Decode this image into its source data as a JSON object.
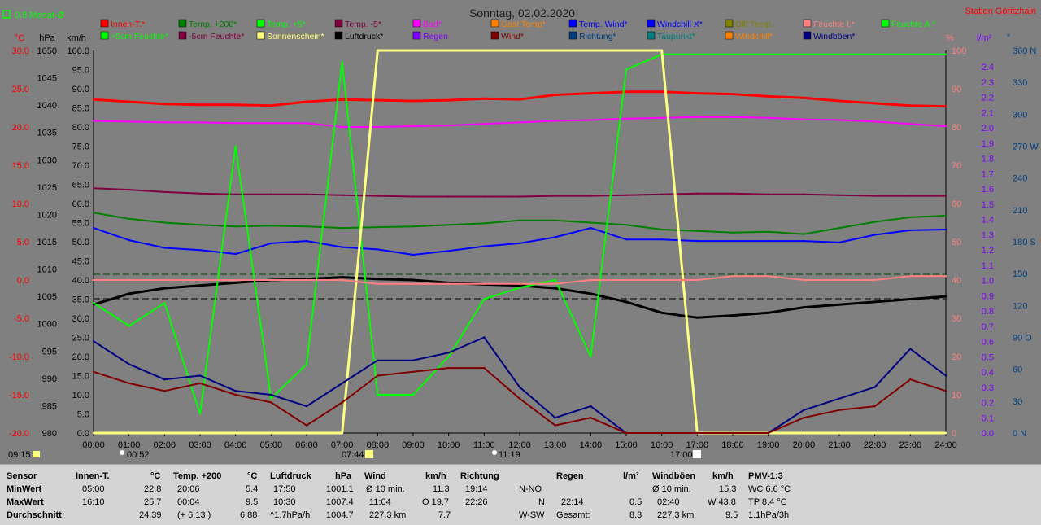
{
  "header": {
    "title": "Sonntag, 02.02.2020",
    "station": "Station Göritzhain",
    "monthly_avg_label": "0.8 Monat-Ø"
  },
  "units": {
    "left": [
      "°C",
      "hPa",
      "km/h"
    ],
    "right": [
      "%",
      "l/m²",
      "°"
    ]
  },
  "axes": {
    "temp_ticks": [
      "30.0",
      "25.0",
      "20.0",
      "15.0",
      "10.0",
      "5.0",
      "0.0",
      "-5.0",
      "-10.0",
      "-15.0",
      "-20.0"
    ],
    "pressure_ticks": [
      "1050",
      "1045",
      "1040",
      "1035",
      "1030",
      "1025",
      "1020",
      "1015",
      "1010",
      "1005",
      "1000",
      "995",
      "990",
      "985",
      "980"
    ],
    "wind_ticks": [
      "100.0",
      "95.0",
      "90.0",
      "85.0",
      "80.0",
      "75.0",
      "70.0",
      "65.0",
      "60.0",
      "55.0",
      "50.0",
      "45.0",
      "40.0",
      "35.0",
      "30.0",
      "25.0",
      "20.0",
      "15.0",
      "10.0",
      "5.0",
      "0.0"
    ],
    "humidity_ticks": [
      "100",
      "90",
      "80",
      "70",
      "60",
      "50",
      "40",
      "30",
      "20",
      "10",
      "0"
    ],
    "rain_ticks": [
      "2.4",
      "2.3",
      "2.2",
      "2.1",
      "2.0",
      "1.9",
      "1.8",
      "1.7",
      "1.6",
      "1.5",
      "1.4",
      "1.3",
      "1.2",
      "1.1",
      "1.0",
      "0.9",
      "0.8",
      "0.7",
      "0.6",
      "0.5",
      "0.4",
      "0.3",
      "0.2",
      "0.1",
      "0.0"
    ],
    "direction_ticks": [
      "360 N",
      "330",
      "300",
      "270 W",
      "240",
      "210",
      "180 S",
      "150",
      "120",
      "90 O",
      "60",
      "30",
      "0 N"
    ],
    "time_ticks": [
      "00:00",
      "01:00",
      "02:00",
      "03:00",
      "04:00",
      "05:00",
      "06:00",
      "07:00",
      "08:00",
      "09:00",
      "10:00",
      "11:00",
      "12:00",
      "13:00",
      "14:00",
      "15:00",
      "16:00",
      "17:00",
      "18:00",
      "19:00",
      "20:00",
      "21:00",
      "22:00",
      "23:00",
      "24:00"
    ]
  },
  "time_markers": {
    "sunrise_label": "07:44",
    "sunset_label": "17:00",
    "moonrise_label": "00:52",
    "moonset_label": "11:19",
    "daylength_label": "09:15"
  },
  "legend": [
    {
      "label": "Innen-T.*",
      "color": "#ff0000"
    },
    {
      "label": "Temp. +200*",
      "color": "#008000"
    },
    {
      "label": "Temp. +5*",
      "color": "#00ff00"
    },
    {
      "label": "Temp. -5*",
      "color": "#800040"
    },
    {
      "label": "Bad*",
      "color": "#ff00ff"
    },
    {
      "label": "Gast Temp*",
      "color": "#ff8000"
    },
    {
      "label": "Temp. Wind*",
      "color": "#0000ff"
    },
    {
      "label": "Windchill X*",
      "color": "#0000ff"
    },
    {
      "label": "Diff Temp.",
      "color": "#808000"
    },
    {
      "label": "Feuchte I.*",
      "color": "#ff8080"
    },
    {
      "label": "Feuchte A.*",
      "color": "#00ff00"
    },
    {
      "label": "+5cm Feuchte*",
      "color": "#00ff00"
    },
    {
      "label": "-5cm Feuchte*",
      "color": "#800040"
    },
    {
      "label": "Sonnenschein*",
      "color": "#ffff80"
    },
    {
      "label": "Luftdruck*",
      "color": "#000000"
    },
    {
      "label": "Regen",
      "color": "#8000ff"
    },
    {
      "label": "Wind*",
      "color": "#800000"
    },
    {
      "label": "Richtung*",
      "color": "#004080"
    },
    {
      "label": "Taupunkt*",
      "color": "#008080"
    },
    {
      "label": "Windchill*",
      "color": "#ff8000"
    },
    {
      "label": "Windböen*",
      "color": "#000080"
    }
  ],
  "chart_data": {
    "type": "line",
    "title": "Sonntag, 02.02.2020",
    "x_range": [
      "00:00",
      "24:00"
    ],
    "temp_range": [
      -20,
      30
    ],
    "pressure_range": [
      980,
      1050
    ],
    "wind_range": [
      0,
      100
    ],
    "humidity_range": [
      0,
      100
    ],
    "grid": false,
    "legend_placement": "top",
    "x": [
      0,
      1,
      2,
      3,
      4,
      5,
      6,
      7,
      8,
      9,
      10,
      11,
      12,
      13,
      14,
      15,
      16,
      17,
      18,
      19,
      20,
      21,
      22,
      23,
      24
    ],
    "series": [
      {
        "name": "Innen-T.*",
        "axis": "temp",
        "color": "#ff0000",
        "values": [
          23.6,
          23.3,
          23.0,
          22.9,
          22.9,
          22.8,
          23.3,
          23.6,
          23.5,
          23.4,
          23.5,
          23.7,
          23.6,
          24.2,
          24.4,
          24.6,
          24.6,
          24.4,
          24.3,
          24.0,
          23.8,
          23.4,
          23.1,
          22.8,
          22.7
        ]
      },
      {
        "name": "Bad*",
        "axis": "temp",
        "color": "#ff00ff",
        "values": [
          20.8,
          20.7,
          20.6,
          20.6,
          20.5,
          20.5,
          20.5,
          20.0,
          20.0,
          20.1,
          20.2,
          20.4,
          20.6,
          20.8,
          20.9,
          21.1,
          21.2,
          21.3,
          21.3,
          21.2,
          21.0,
          20.9,
          20.7,
          20.4,
          20.1
        ]
      },
      {
        "name": "Temp. -5*",
        "axis": "temp",
        "color": "#800040",
        "values": [
          12.0,
          11.8,
          11.5,
          11.3,
          11.2,
          11.2,
          11.2,
          11.1,
          11.0,
          10.9,
          10.9,
          10.9,
          10.9,
          11.0,
          11.0,
          11.1,
          11.2,
          11.3,
          11.3,
          11.2,
          11.2,
          11.1,
          11.0,
          11.0,
          11.0
        ]
      },
      {
        "name": "Temp. +200*",
        "axis": "temp",
        "color": "#008000",
        "values": [
          8.8,
          8.0,
          7.5,
          7.2,
          7.0,
          7.1,
          7.0,
          6.8,
          6.9,
          7.0,
          7.2,
          7.4,
          7.8,
          7.8,
          7.5,
          7.2,
          6.6,
          6.4,
          6.2,
          6.3,
          6.0,
          6.8,
          7.6,
          8.2,
          8.4
        ]
      },
      {
        "name": "Temp. Wind*",
        "axis": "temp",
        "color": "#0000ff",
        "values": [
          6.8,
          5.2,
          4.2,
          3.9,
          3.4,
          4.8,
          5.1,
          4.3,
          4.0,
          3.3,
          3.8,
          4.4,
          4.8,
          5.6,
          6.8,
          5.3,
          5.3,
          5.1,
          5.1,
          5.1,
          5.1,
          4.9,
          5.9,
          6.5,
          6.6
        ]
      },
      {
        "name": "Luftdruck*",
        "axis": "pressure",
        "color": "#000000",
        "values": [
          1003.5,
          1005.5,
          1006.5,
          1007.0,
          1007.5,
          1008.0,
          1008.2,
          1008.5,
          1008.2,
          1008.0,
          1007.5,
          1007.2,
          1007.0,
          1006.5,
          1005.5,
          1004.0,
          1002.0,
          1001.1,
          1001.5,
          1002.0,
          1003.0,
          1003.5,
          1004.0,
          1004.5,
          1005.0
        ]
      },
      {
        "name": "Feuchte A.*",
        "axis": "humidity",
        "color": "#00ff00",
        "values": [
          34,
          28,
          34,
          5,
          75,
          9,
          18,
          97,
          10,
          10,
          20,
          35,
          38,
          40,
          20,
          95,
          99,
          99,
          99,
          99,
          99,
          99,
          99,
          99,
          99
        ]
      },
      {
        "name": "Sonnenschein*",
        "axis": "humidity",
        "color": "#ffff80",
        "values": [
          0,
          0,
          0,
          0,
          0,
          0,
          0,
          0,
          100,
          100,
          100,
          100,
          100,
          100,
          100,
          100,
          100,
          0,
          0,
          0,
          0,
          0,
          0,
          0,
          0
        ]
      },
      {
        "name": "Windböen*",
        "axis": "wind",
        "color": "#000080",
        "values": [
          24,
          18,
          14,
          15,
          11,
          10,
          7,
          13,
          19,
          19,
          21,
          25,
          12,
          4,
          7,
          0,
          0,
          0,
          0,
          0,
          6,
          9,
          12,
          22,
          15
        ]
      },
      {
        "name": "Wind*",
        "axis": "wind",
        "color": "#800000",
        "values": [
          16,
          13,
          11,
          13,
          10,
          8,
          2,
          8,
          15,
          16,
          17,
          17,
          9,
          2,
          4,
          0,
          0,
          0,
          0,
          0,
          4,
          6,
          7,
          14,
          11
        ]
      },
      {
        "name": "Feuchte I.*",
        "axis": "humidity",
        "color": "#ff8080",
        "values": [
          40,
          40,
          40,
          40,
          40,
          40,
          40,
          40,
          39,
          39,
          39,
          39,
          39,
          39,
          40,
          40,
          40,
          40,
          41,
          41,
          40,
          40,
          40,
          41,
          41
        ]
      }
    ]
  },
  "stats": {
    "headers": {
      "sensor": "Sensor",
      "innen": "Innen-T.",
      "innen_unit": "°C",
      "temp": "Temp. +200",
      "temp_unit": "°C",
      "druck": "Luftdruck",
      "druck_unit": "hPa",
      "wind": "Wind",
      "wind_unit": "km/h",
      "richtung": "Richtung",
      "regen": "Regen",
      "regen_unit": "l/m²",
      "boeen": "Windböen",
      "boeen_unit": "km/h",
      "pmv": "PMV-1:3"
    },
    "labels": {
      "min": "MinWert",
      "max": "MaxWert",
      "avg": "Durchschnitt"
    },
    "innen": {
      "min_time": "05:00",
      "min_val": "22.8",
      "max_time": "16:10",
      "max_val": "25.7",
      "avg_val": "24.39"
    },
    "temp": {
      "min_time": "20:06",
      "min_val": "5.4",
      "max_time": "00:04",
      "max_val": "9.5",
      "avg_extra": "(+ 6.13 )",
      "avg_val": "6.88"
    },
    "druck": {
      "min_time": "17:50",
      "min_val": "1001.1",
      "max_time": "10:30",
      "max_val": "1007.4",
      "avg_extra": "^1.7hPa/h",
      "avg_val": "1004.7"
    },
    "wind": {
      "min_label": "Ø 10 min.",
      "min_val": "11.3",
      "max_time": "11:04",
      "max_extra": "O 19.7",
      "avg_extra": "227.3 km",
      "avg_val": "7.7"
    },
    "richtung": {
      "min_time": "19:14",
      "min_val": "N-NO",
      "max_time": "22:26",
      "max_val": "N",
      "avg_val": "W-SW"
    },
    "regen": {
      "max_time": "22:14",
      "max_val": "0.5",
      "avg_label": "Gesamt:",
      "avg_val": "8.3"
    },
    "boeen": {
      "min_label": "Ø 10 min.",
      "min_val": "15.3",
      "max_time": "02:40",
      "max_extra": "W 43.8",
      "avg_extra": "227.3 km",
      "avg_val": "9.5"
    },
    "pmv": {
      "line1": "WC 6.6 °C",
      "line2": "TP 8.4 °C",
      "line3": "1.1hPa/3h"
    }
  }
}
